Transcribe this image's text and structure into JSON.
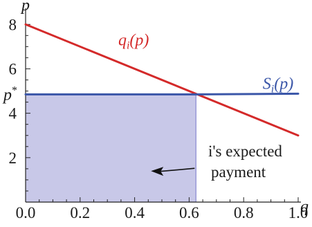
{
  "chart_data": {
    "type": "line",
    "title": "",
    "xlabel": "q",
    "ylabel": "p",
    "xlim": [
      0,
      1
    ],
    "ylim": [
      0,
      8.6
    ],
    "x_ticks": [
      {
        "value": 0.0,
        "label": "0.0"
      },
      {
        "value": 0.2,
        "label": "0.2"
      },
      {
        "value": 0.4,
        "label": "0.4"
      },
      {
        "value": 0.6,
        "label": "0.6"
      },
      {
        "value": 0.8,
        "label": "0.8"
      },
      {
        "value": 1.0,
        "label": "1.0"
      }
    ],
    "y_ticks": [
      {
        "value": 2,
        "label": "2"
      },
      {
        "value": 4,
        "label": "4"
      },
      {
        "value": 6,
        "label": "6"
      },
      {
        "value": 8,
        "label": "8"
      }
    ],
    "p_star": {
      "value": 4.85,
      "label": "p",
      "sup": "*"
    },
    "series": [
      {
        "name": "q_i(p)",
        "label_main": "q",
        "label_sub": "i",
        "label_arg": "(p)",
        "color": "#d42a2a",
        "x": [
          0,
          1
        ],
        "y": [
          8,
          3
        ]
      },
      {
        "name": "S_i(p)",
        "label_main": "S",
        "label_sub": "i",
        "label_arg": "(p)",
        "color": "#3a56a8",
        "x": [
          0,
          0.63,
          1
        ],
        "y": [
          4.85,
          4.85,
          4.88
        ]
      }
    ],
    "shaded_region": {
      "x": [
        0,
        0.625
      ],
      "y": [
        0,
        4.85
      ],
      "fill": "#c8c8e8"
    },
    "annotation": {
      "lines": [
        "i's expected",
        "payment"
      ],
      "arrow_to": {
        "x": 0.46,
        "y": 1.4
      }
    },
    "grid": false,
    "legend": "none"
  }
}
